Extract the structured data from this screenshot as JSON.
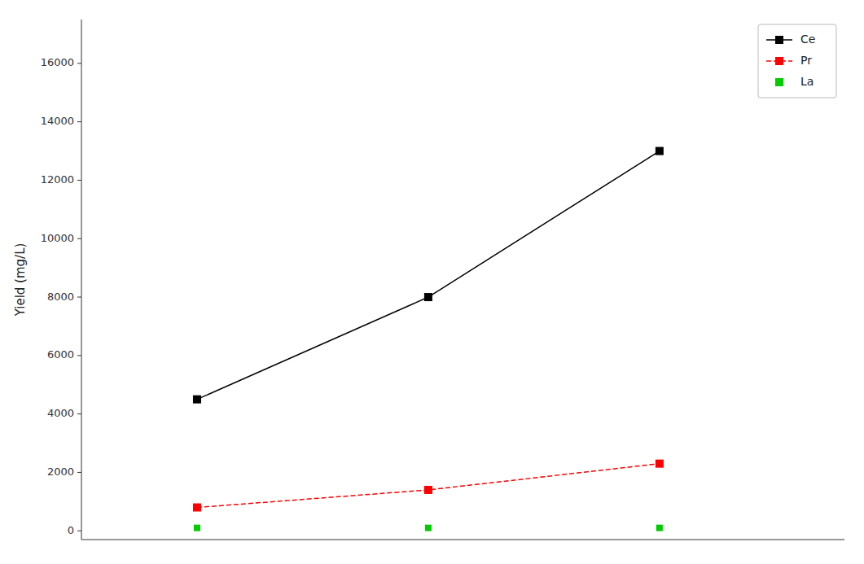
{
  "chart_data": {
    "type": "line",
    "x": [
      1,
      2,
      3
    ],
    "series": [
      {
        "name": "Ce",
        "color": "#000000",
        "marker": "square",
        "line_style": "solid",
        "values": [
          4500,
          8000,
          13000
        ]
      },
      {
        "name": "Pr",
        "color": "#ff0000",
        "marker": "square",
        "line_style": "dashed",
        "values": [
          800,
          1400,
          2300
        ]
      },
      {
        "name": "La",
        "color": "#00cc00",
        "marker": "square",
        "line_style": "none",
        "values": [
          100,
          100,
          100
        ]
      }
    ],
    "y_label": "Yield (mg/L)",
    "xlim": [
      0.5,
      3.8
    ],
    "ylim": [
      -300,
      17500
    ],
    "yticks": [
      0,
      2000,
      4000,
      6000,
      8000,
      10000,
      12000,
      14000,
      16000
    ],
    "tick_labels": "y",
    "grid": false,
    "legend": "upper right"
  }
}
